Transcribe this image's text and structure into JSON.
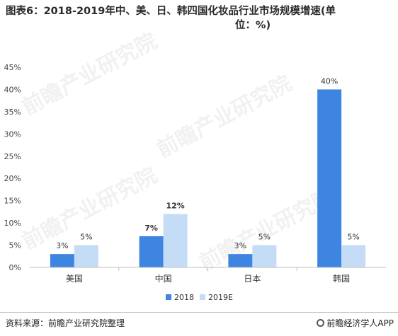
{
  "title_line1": "图表6：2018-2019年中、美、日、韩四国化妆品行业市场规模增速(单",
  "title_line2": "位：%)",
  "footer": {
    "source": "资料来源：前瞻产业研究院整理",
    "brand": "前瞻经济学人APP"
  },
  "chart_data": {
    "type": "bar",
    "title": "图表6：2018-2019年中、美、日、韩四国化妆品行业市场规模增速(单位：%)",
    "categories": [
      "美国",
      "中国",
      "日本",
      "韩国"
    ],
    "series": [
      {
        "name": "2018",
        "values": [
          3,
          7,
          3,
          40
        ],
        "labels": [
          "3%",
          "7%",
          "3%",
          "40%"
        ],
        "color": "#3d85e0"
      },
      {
        "name": "2019E",
        "values": [
          5,
          12,
          5,
          5
        ],
        "labels": [
          "5%",
          "12%",
          "5%",
          "5%"
        ],
        "color": "#c5dcf7"
      }
    ],
    "ylim": [
      0,
      45
    ],
    "yticks": [
      "0%",
      "5%",
      "10%",
      "15%",
      "20%",
      "25%",
      "30%",
      "35%",
      "40%",
      "45%"
    ],
    "ytick_values": [
      0,
      5,
      10,
      15,
      20,
      25,
      30,
      35,
      40,
      45
    ],
    "xlabel": "",
    "ylabel": "",
    "grid": false,
    "legend": "bottom"
  }
}
